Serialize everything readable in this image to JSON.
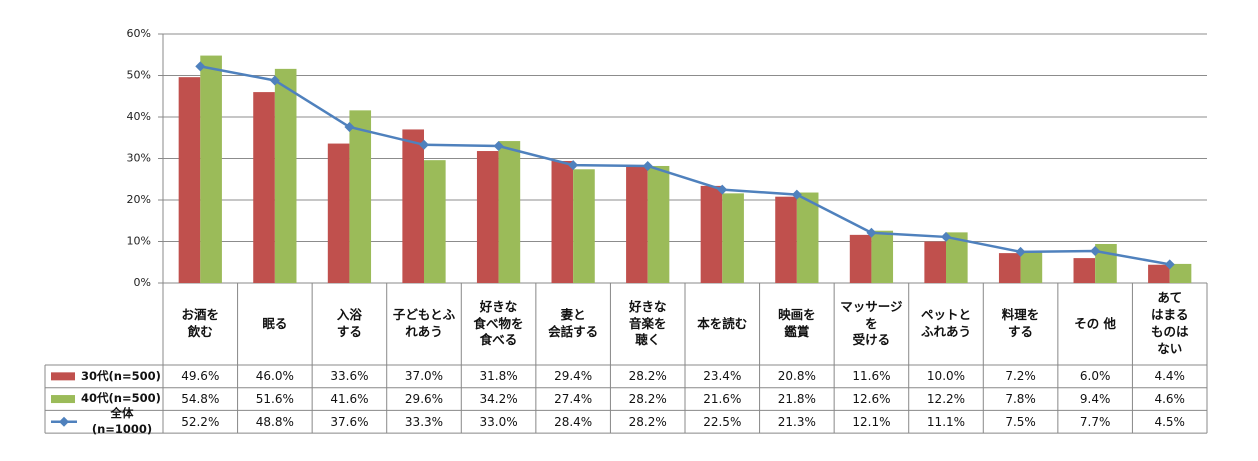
{
  "chart_data": {
    "type": "bar",
    "categories": [
      "お酒を\n飲む",
      "眠る",
      "入浴\nする",
      "子どもとふ\nれあう",
      "好きな\n食べ物を\n食べる",
      "妻と\n会話する",
      "好きな\n音楽を\n聴く",
      "本を読む",
      "映画を\n鑑賞",
      "マッサージ\nを\n受ける",
      "ペットと\nふれあう",
      "料理を\nする",
      "その 他",
      "あて\nはまる\nものは\nない"
    ],
    "series": [
      {
        "name": "30代(n=500)",
        "type": "bar",
        "color": "#c0504d",
        "values": [
          49.6,
          46.0,
          33.6,
          37.0,
          31.8,
          29.4,
          28.2,
          23.4,
          20.8,
          11.6,
          10.0,
          7.2,
          6.0,
          4.4
        ],
        "value_labels": [
          "49.6%",
          "46.0%",
          "33.6%",
          "37.0%",
          "31.8%",
          "29.4%",
          "28.2%",
          "23.4%",
          "20.8%",
          "11.6%",
          "10.0%",
          "7.2%",
          "6.0%",
          "4.4%"
        ]
      },
      {
        "name": "40代(n=500)",
        "type": "bar",
        "color": "#9bbb59",
        "values": [
          54.8,
          51.6,
          41.6,
          29.6,
          34.2,
          27.4,
          28.2,
          21.6,
          21.8,
          12.6,
          12.2,
          7.8,
          9.4,
          4.6
        ],
        "value_labels": [
          "54.8%",
          "51.6%",
          "41.6%",
          "29.6%",
          "34.2%",
          "27.4%",
          "28.2%",
          "21.6%",
          "21.8%",
          "12.6%",
          "12.2%",
          "7.8%",
          "9.4%",
          "4.6%"
        ]
      },
      {
        "name": "全体(n=1000)",
        "type": "line",
        "color": "#4f81bd",
        "values": [
          52.2,
          48.8,
          37.6,
          33.3,
          33.0,
          28.4,
          28.2,
          22.5,
          21.3,
          12.1,
          11.1,
          7.5,
          7.7,
          4.5
        ],
        "value_labels": [
          "52.2%",
          "48.8%",
          "37.6%",
          "33.3%",
          "33.0%",
          "28.4%",
          "28.2%",
          "22.5%",
          "21.3%",
          "12.1%",
          "11.1%",
          "7.5%",
          "7.7%",
          "4.5%"
        ]
      }
    ],
    "ylim": [
      0,
      60
    ],
    "yticks": [
      {
        "value": 0,
        "label": "0%"
      },
      {
        "value": 10,
        "label": "10%"
      },
      {
        "value": 20,
        "label": "20%"
      },
      {
        "value": 30,
        "label": "30%"
      },
      {
        "value": 40,
        "label": "40%"
      },
      {
        "value": 50,
        "label": "50%"
      },
      {
        "value": 60,
        "label": "60%"
      }
    ],
    "grid": true
  }
}
